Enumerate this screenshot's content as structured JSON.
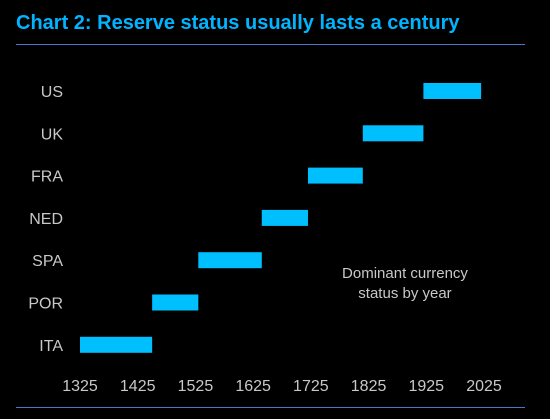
{
  "chart_data": {
    "type": "bar",
    "subtype": "timeline-range",
    "title": "Chart 2: Reserve status usually lasts a century",
    "xlabel": "",
    "ylabel": "",
    "xlim": [
      1325,
      2025
    ],
    "x_ticks": [
      1325,
      1425,
      1525,
      1625,
      1725,
      1825,
      1925,
      2025
    ],
    "categories": [
      "US",
      "UK",
      "FRA",
      "NED",
      "SPA",
      "POR",
      "ITA"
    ],
    "ranges": [
      {
        "country": "US",
        "start": 1920,
        "end": 2020
      },
      {
        "country": "UK",
        "start": 1815,
        "end": 1920
      },
      {
        "country": "FRA",
        "start": 1720,
        "end": 1815
      },
      {
        "country": "NED",
        "start": 1640,
        "end": 1720
      },
      {
        "country": "SPA",
        "start": 1530,
        "end": 1640
      },
      {
        "country": "POR",
        "start": 1450,
        "end": 1530
      },
      {
        "country": "ITA",
        "start": 1325,
        "end": 1450
      }
    ],
    "annotation": [
      "Dominant currency",
      "status by year"
    ],
    "grid": false,
    "legend": "none",
    "colors": {
      "bar": "#00bfff",
      "title": "#00b4ff",
      "rule": "#4a78c8",
      "text": "#c8c8c8",
      "background": "#000000"
    }
  }
}
